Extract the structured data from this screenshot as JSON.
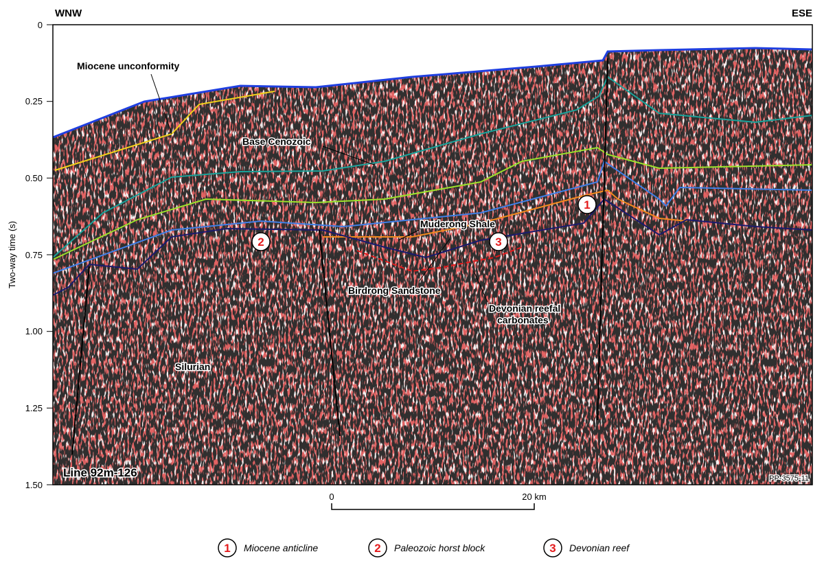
{
  "directions": {
    "left": "WNW",
    "right": "ESE"
  },
  "y_axis": {
    "label": "Two-way time (s)",
    "ticks": [
      "0",
      "0.25",
      "0.50",
      "0.75",
      "1.00",
      "1.25",
      "1.50"
    ]
  },
  "labels": {
    "miocene_unconformity": "Miocene unconformity",
    "base_cenozoic": "Base Cenozoic",
    "muderong_shale": "Muderong Shale",
    "birdrong_sandstone": "Birdrong Sandstone",
    "devonian_1": "Devonian reefal",
    "devonian_2": "carbonates",
    "silurian": "Silurian",
    "line": "Line 92m-126",
    "figure_id": "PP-3575-11"
  },
  "scale_bar": {
    "start": "0",
    "end": "20 km"
  },
  "markers": [
    "1",
    "2",
    "3"
  ],
  "legend": [
    {
      "num": "1",
      "text": "Miocene anticline"
    },
    {
      "num": "2",
      "text": "Paleozoic horst block"
    },
    {
      "num": "3",
      "text": "Devonian reef"
    }
  ],
  "colors": {
    "surface": "#1f3fe0",
    "miocene": "#f2d21a",
    "cenozoic": "#1aa39a",
    "green": "#9be22a",
    "lightblue": "#3f7fe6",
    "orange": "#f28a1e",
    "navy": "#1a1a6e",
    "reef": "#e41a1c"
  }
}
